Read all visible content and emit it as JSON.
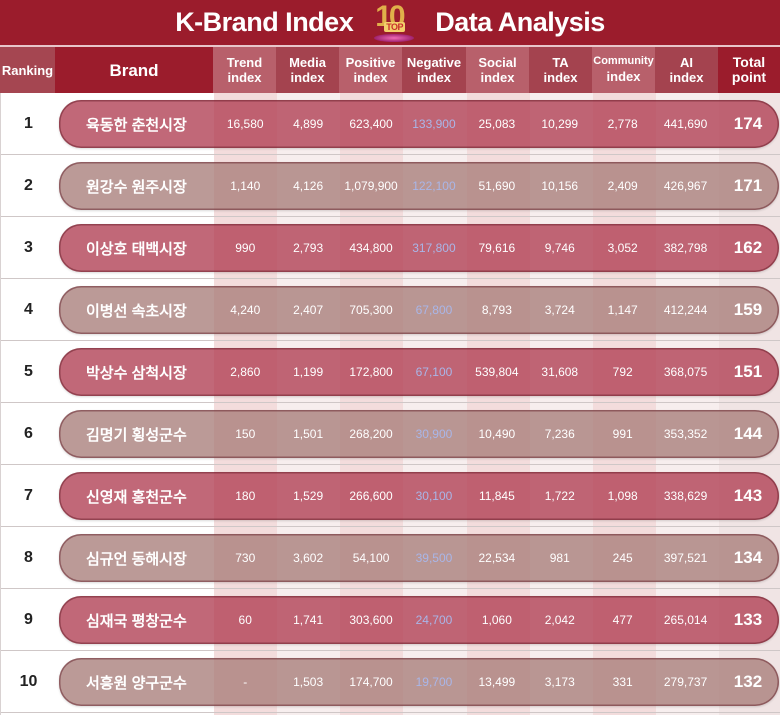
{
  "title": {
    "left": "K-Brand Index",
    "right": "Data Analysis",
    "logo": {
      "number": "10",
      "label": "TOP",
      "icon": "top10-trophy-icon"
    }
  },
  "columns": [
    {
      "key": "ranking",
      "label": "Ranking"
    },
    {
      "key": "brand",
      "label": "Brand"
    },
    {
      "key": "trend",
      "label1": "Trend",
      "label2": "index"
    },
    {
      "key": "media",
      "label1": "Media",
      "label2": "index"
    },
    {
      "key": "positive",
      "label1": "Positive",
      "label2": "index"
    },
    {
      "key": "negative",
      "label1": "Negative",
      "label2": "index"
    },
    {
      "key": "social",
      "label1": "Social",
      "label2": "index"
    },
    {
      "key": "ta",
      "label1": "TA",
      "label2": "index"
    },
    {
      "key": "community",
      "label1": "Community",
      "label2": "index"
    },
    {
      "key": "ai",
      "label1": "AI",
      "label2": "index"
    },
    {
      "key": "total",
      "label1": "Total",
      "label2": "point"
    }
  ],
  "rows": [
    {
      "rank": "1",
      "brand": "육동한 춘천시장",
      "trend": "16,580",
      "media": "4,899",
      "positive": "623,400",
      "negative": "133,900",
      "social": "25,083",
      "ta": "10,299",
      "community": "2,778",
      "ai": "441,690",
      "total": "174"
    },
    {
      "rank": "2",
      "brand": "원강수 원주시장",
      "trend": "1,140",
      "media": "4,126",
      "positive": "1,079,900",
      "negative": "122,100",
      "social": "51,690",
      "ta": "10,156",
      "community": "2,409",
      "ai": "426,967",
      "total": "171"
    },
    {
      "rank": "3",
      "brand": "이상호 태백시장",
      "trend": "990",
      "media": "2,793",
      "positive": "434,800",
      "negative": "317,800",
      "social": "79,616",
      "ta": "9,746",
      "community": "3,052",
      "ai": "382,798",
      "total": "162"
    },
    {
      "rank": "4",
      "brand": "이병선 속초시장",
      "trend": "4,240",
      "media": "2,407",
      "positive": "705,300",
      "negative": "67,800",
      "social": "8,793",
      "ta": "3,724",
      "community": "1,147",
      "ai": "412,244",
      "total": "159"
    },
    {
      "rank": "5",
      "brand": "박상수 삼척시장",
      "trend": "2,860",
      "media": "1,199",
      "positive": "172,800",
      "negative": "67,100",
      "social": "539,804",
      "ta": "31,608",
      "community": "792",
      "ai": "368,075",
      "total": "151"
    },
    {
      "rank": "6",
      "brand": "김명기 횡성군수",
      "trend": "150",
      "media": "1,501",
      "positive": "268,200",
      "negative": "30,900",
      "social": "10,490",
      "ta": "7,236",
      "community": "991",
      "ai": "353,352",
      "total": "144"
    },
    {
      "rank": "7",
      "brand": "신영재 홍천군수",
      "trend": "180",
      "media": "1,529",
      "positive": "266,600",
      "negative": "30,100",
      "social": "11,845",
      "ta": "1,722",
      "community": "1,098",
      "ai": "338,629",
      "total": "143"
    },
    {
      "rank": "8",
      "brand": "심규언 동해시장",
      "trend": "730",
      "media": "3,602",
      "positive": "54,100",
      "negative": "39,500",
      "social": "22,534",
      "ta": "981",
      "community": "245",
      "ai": "397,521",
      "total": "134"
    },
    {
      "rank": "9",
      "brand": "심재국 평창군수",
      "trend": "60",
      "media": "1,741",
      "positive": "303,600",
      "negative": "24,700",
      "social": "1,060",
      "ta": "2,042",
      "community": "477",
      "ai": "265,014",
      "total": "133"
    },
    {
      "rank": "10",
      "brand": "서흥원 양구군수",
      "trend": "-",
      "media": "1,503",
      "positive": "174,700",
      "negative": "19,700",
      "social": "13,499",
      "ta": "3,173",
      "community": "331",
      "ai": "279,737",
      "total": "132"
    }
  ],
  "colors": {
    "header_bg": "#9b1c2c",
    "pill_odd": "#b03e52",
    "pill_even": "#a87d7a",
    "negative_text": "#a9b6e8"
  }
}
